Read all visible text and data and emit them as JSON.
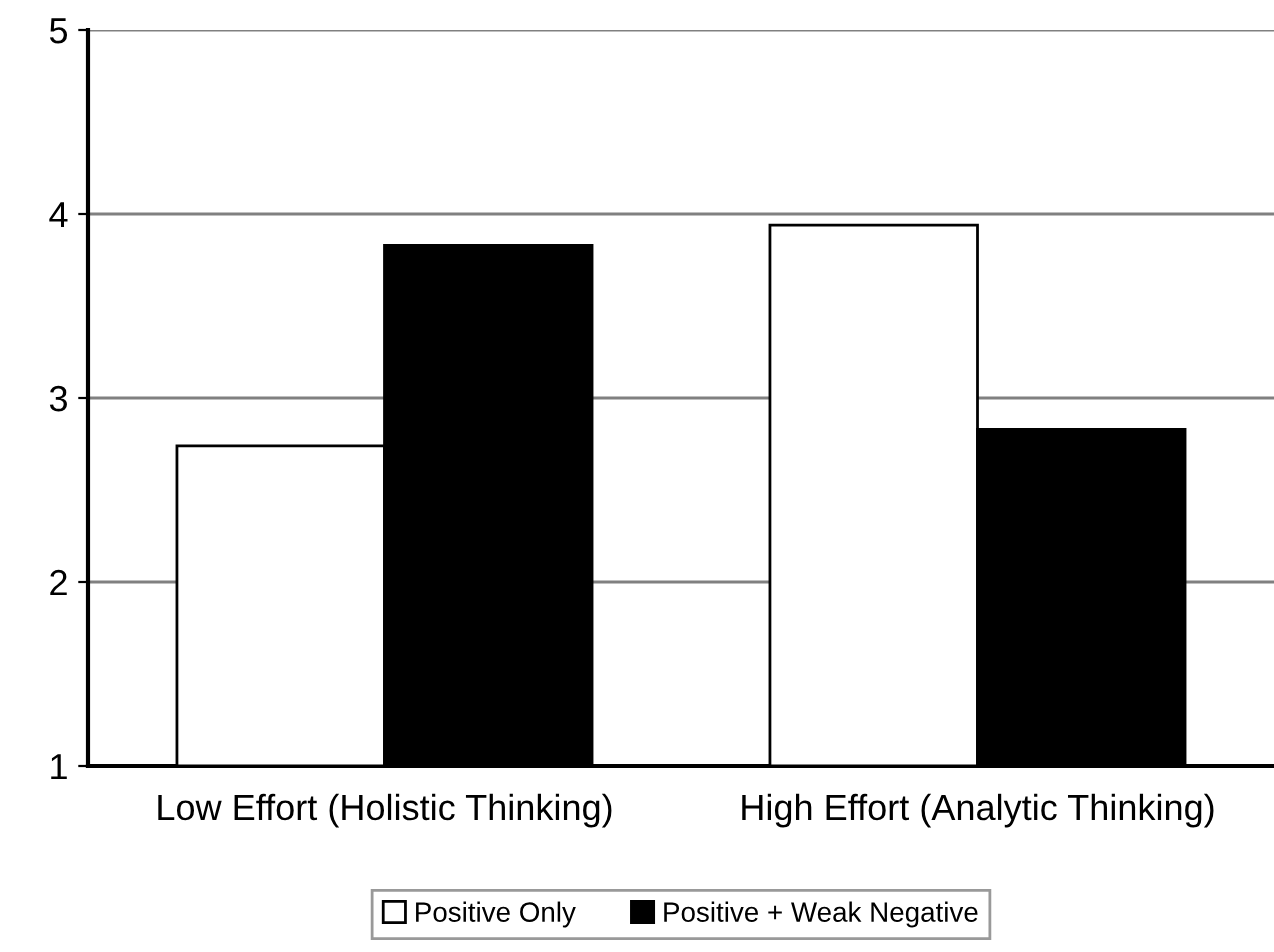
{
  "chart_data": {
    "type": "bar",
    "categories": [
      "Low Effort (Holistic Thinking)",
      "High Effort (Analytic Thinking)"
    ],
    "series": [
      {
        "name": "Positive Only",
        "color": "#ffffff",
        "values": [
          2.74,
          3.94
        ]
      },
      {
        "name": "Positive + Weak Negative",
        "color": "#000000",
        "values": [
          3.83,
          2.83
        ]
      }
    ],
    "ylim": [
      1,
      5
    ],
    "yticks": [
      1,
      2,
      3,
      4,
      5
    ],
    "grid": "y",
    "legend": "bottom"
  }
}
